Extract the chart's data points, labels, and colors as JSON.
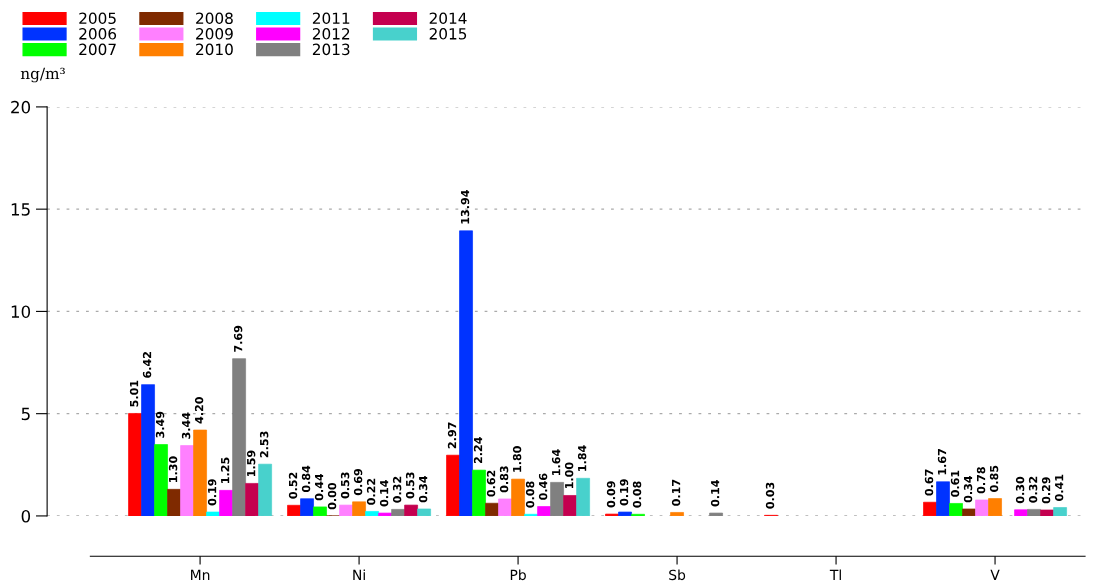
{
  "chart_data": {
    "type": "bar",
    "ylabel": "ng/m³",
    "categories": [
      "Mn",
      "Ni",
      "Pb",
      "Sb",
      "Tl",
      "V"
    ],
    "ylim": [
      0,
      20
    ],
    "yticks": [
      0,
      5,
      10,
      15,
      20
    ],
    "grid": "y",
    "legend": "top left",
    "series": [
      {
        "name": "2005",
        "color": "#ff0000",
        "values": [
          5.01,
          0.52,
          2.97,
          0.09,
          0.03,
          0.67
        ],
        "value_labels": [
          "5.01",
          "0.52",
          "2.97",
          "0.09",
          "0.03",
          "0.67"
        ]
      },
      {
        "name": "2006",
        "color": "#0033ff",
        "values": [
          6.42,
          0.84,
          13.94,
          0.19,
          null,
          1.67
        ],
        "value_labels": [
          "6.42",
          "0.84",
          "13.94",
          "0.19",
          null,
          "1.67"
        ]
      },
      {
        "name": "2007",
        "color": "#00ff00",
        "values": [
          3.49,
          0.44,
          2.24,
          0.08,
          null,
          0.61
        ],
        "value_labels": [
          "3.49",
          "0.44",
          "2.24",
          "0.08",
          null,
          "0.61"
        ]
      },
      {
        "name": "2008",
        "color": "#7f2a00",
        "values": [
          1.3,
          0.0,
          0.62,
          null,
          null,
          0.34
        ],
        "value_labels": [
          "1.30",
          "0.00",
          "0.62",
          null,
          null,
          "0.34"
        ]
      },
      {
        "name": "2009",
        "color": "#ff80ff",
        "values": [
          3.44,
          0.53,
          0.83,
          null,
          null,
          0.78
        ],
        "value_labels": [
          "3.44",
          "0.53",
          "0.83",
          null,
          null,
          "0.78"
        ]
      },
      {
        "name": "2010",
        "color": "#ff7f00",
        "values": [
          4.2,
          0.69,
          1.8,
          0.17,
          null,
          0.85
        ],
        "value_labels": [
          "4.20",
          "0.69",
          "1.80",
          "0.17",
          null,
          "0.85"
        ]
      },
      {
        "name": "2011",
        "color": "#00ffff",
        "values": [
          0.19,
          0.22,
          0.08,
          null,
          null,
          null
        ],
        "value_labels": [
          "0.19",
          "0.22",
          "0.08",
          null,
          null,
          null
        ]
      },
      {
        "name": "2012",
        "color": "#ff00ff",
        "values": [
          1.25,
          0.14,
          0.46,
          null,
          null,
          0.3
        ],
        "value_labels": [
          "1.25",
          "0.14",
          "0.46",
          null,
          null,
          "0.30"
        ]
      },
      {
        "name": "2013",
        "color": "#808080",
        "values": [
          7.69,
          0.32,
          1.64,
          0.14,
          null,
          0.32
        ],
        "value_labels": [
          "7.69",
          "0.32",
          "1.64",
          "0.14",
          null,
          "0.32"
        ]
      },
      {
        "name": "2014",
        "color": "#c4004f",
        "values": [
          1.59,
          0.53,
          1.0,
          null,
          null,
          0.29
        ],
        "value_labels": [
          "1.59",
          "0.53",
          "1.00",
          null,
          null,
          "0.29"
        ]
      },
      {
        "name": "2015",
        "color": "#48d1cc",
        "values": [
          2.53,
          0.34,
          1.84,
          null,
          null,
          0.41
        ],
        "value_labels": [
          "2.53",
          "0.34",
          "1.84",
          null,
          null,
          "0.41"
        ]
      }
    ]
  }
}
